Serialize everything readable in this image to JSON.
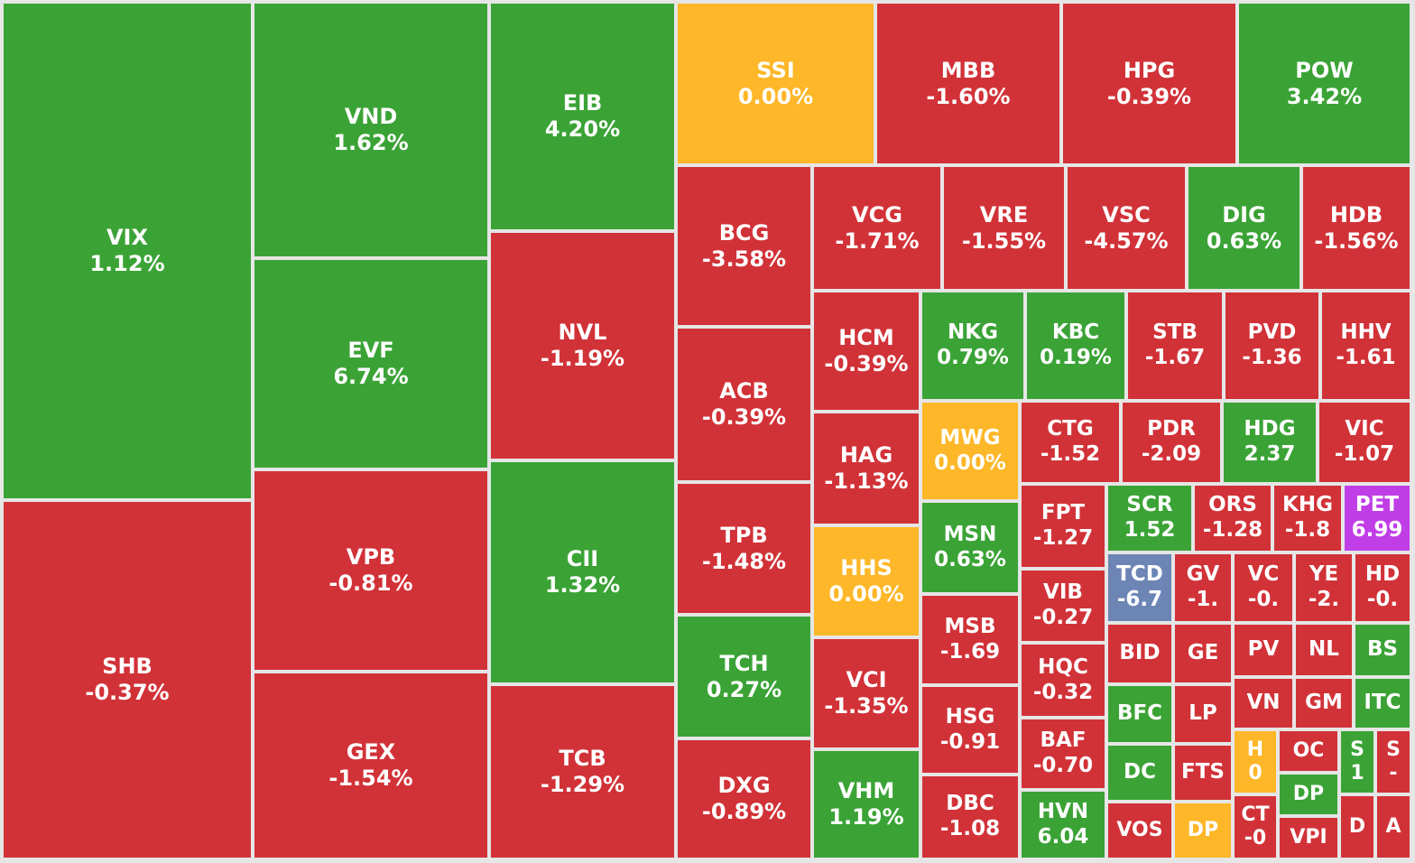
{
  "chart_data": {
    "type": "treemap",
    "colors": {
      "up": "#3ba336",
      "down": "#d13238",
      "flat": "#fdb728",
      "ceiling": "#c03ee6",
      "floor": "#6c85b5"
    },
    "items": [
      {
        "code": "VIX",
        "change": "1.12%",
        "status": "up"
      },
      {
        "code": "SHB",
        "change": "-0.37%",
        "status": "down"
      },
      {
        "code": "VND",
        "change": "1.62%",
        "status": "up"
      },
      {
        "code": "EVF",
        "change": "6.74%",
        "status": "up"
      },
      {
        "code": "VPB",
        "change": "-0.81%",
        "status": "down"
      },
      {
        "code": "GEX",
        "change": "-1.54%",
        "status": "down"
      },
      {
        "code": "EIB",
        "change": "4.20%",
        "status": "up"
      },
      {
        "code": "NVL",
        "change": "-1.19%",
        "status": "down"
      },
      {
        "code": "CII",
        "change": "1.32%",
        "status": "up"
      },
      {
        "code": "TCB",
        "change": "-1.29%",
        "status": "down"
      },
      {
        "code": "SSI",
        "change": "0.00%",
        "status": "flat"
      },
      {
        "code": "MBB",
        "change": "-1.60%",
        "status": "down"
      },
      {
        "code": "HPG",
        "change": "-0.39%",
        "status": "down"
      },
      {
        "code": "POW",
        "change": "3.42%",
        "status": "up"
      },
      {
        "code": "BCG",
        "change": "-3.58%",
        "status": "down"
      },
      {
        "code": "ACB",
        "change": "-0.39%",
        "status": "down"
      },
      {
        "code": "TPB",
        "change": "-1.48%",
        "status": "down"
      },
      {
        "code": "TCH",
        "change": "0.27%",
        "status": "up"
      },
      {
        "code": "DXG",
        "change": "-0.89%",
        "status": "down"
      },
      {
        "code": "VCG",
        "change": "-1.71%",
        "status": "down"
      },
      {
        "code": "VRE",
        "change": "-1.55%",
        "status": "down"
      },
      {
        "code": "VSC",
        "change": "-4.57%",
        "status": "down"
      },
      {
        "code": "DIG",
        "change": "0.63%",
        "status": "up"
      },
      {
        "code": "HDB",
        "change": "-1.56%",
        "status": "down"
      },
      {
        "code": "HCM",
        "change": "-0.39%",
        "status": "down"
      },
      {
        "code": "HAG",
        "change": "-1.13%",
        "status": "down"
      },
      {
        "code": "HHS",
        "change": "0.00%",
        "status": "flat"
      },
      {
        "code": "VCI",
        "change": "-1.35%",
        "status": "down"
      },
      {
        "code": "VHM",
        "change": "1.19%",
        "status": "up"
      },
      {
        "code": "NKG",
        "change": "0.79%",
        "status": "up"
      },
      {
        "code": "KBC",
        "change": "0.19%",
        "status": "up"
      },
      {
        "code": "STB",
        "change": "-1.67",
        "status": "down"
      },
      {
        "code": "PVD",
        "change": "-1.36",
        "status": "down"
      },
      {
        "code": "HHV",
        "change": "-1.61",
        "status": "down"
      },
      {
        "code": "MWG",
        "change": "0.00%",
        "status": "flat"
      },
      {
        "code": "MSN",
        "change": "0.63%",
        "status": "up"
      },
      {
        "code": "MSB",
        "change": "-1.69",
        "status": "down"
      },
      {
        "code": "HSG",
        "change": "-0.91",
        "status": "down"
      },
      {
        "code": "DBC",
        "change": "-1.08",
        "status": "down"
      },
      {
        "code": "CTG",
        "change": "-1.52",
        "status": "down"
      },
      {
        "code": "PDR",
        "change": "-2.09",
        "status": "down"
      },
      {
        "code": "HDG",
        "change": "2.37",
        "status": "up"
      },
      {
        "code": "VIC",
        "change": "-1.07",
        "status": "down"
      },
      {
        "code": "FPT",
        "change": "-1.27",
        "status": "down"
      },
      {
        "code": "VIB",
        "change": "-0.27",
        "status": "down"
      },
      {
        "code": "HQC",
        "change": "-0.32",
        "status": "down"
      },
      {
        "code": "BAF",
        "change": "-0.70",
        "status": "down"
      },
      {
        "code": "HVN",
        "change": "6.04",
        "status": "up"
      },
      {
        "code": "SCR",
        "change": "1.52",
        "status": "up"
      },
      {
        "code": "ORS",
        "change": "-1.28",
        "status": "down"
      },
      {
        "code": "KHG",
        "change": "-1.8",
        "status": "down"
      },
      {
        "code": "PET",
        "change": "6.99",
        "status": "ceiling"
      },
      {
        "code": "TCD",
        "change": "-6.7",
        "status": "floor"
      },
      {
        "code": "GV",
        "change": "-1.",
        "status": "down"
      },
      {
        "code": "VC",
        "change": "-0.",
        "status": "down"
      },
      {
        "code": "YE",
        "change": "-2.",
        "status": "down"
      },
      {
        "code": "HD",
        "change": "-0.",
        "status": "down"
      },
      {
        "code": "BID",
        "change": "",
        "status": "down"
      },
      {
        "code": "GE",
        "change": "",
        "status": "down"
      },
      {
        "code": "PV",
        "change": "",
        "status": "down"
      },
      {
        "code": "NL",
        "change": "",
        "status": "down"
      },
      {
        "code": "BS",
        "change": "",
        "status": "up"
      },
      {
        "code": "BFC",
        "change": "",
        "status": "up"
      },
      {
        "code": "LP",
        "change": "",
        "status": "down"
      },
      {
        "code": "VN",
        "change": "",
        "status": "down"
      },
      {
        "code": "GM",
        "change": "",
        "status": "down"
      },
      {
        "code": "ITC",
        "change": "",
        "status": "up"
      },
      {
        "code": "DC",
        "change": "",
        "status": "up"
      },
      {
        "code": "FTS",
        "change": "",
        "status": "down"
      },
      {
        "code": "H",
        "change": "0",
        "status": "flat"
      },
      {
        "code": "OC",
        "change": "",
        "status": "down"
      },
      {
        "code": "S",
        "change": "1",
        "status": "up"
      },
      {
        "code": "S",
        "change": "-",
        "status": "down"
      },
      {
        "code": "DP",
        "change": "",
        "status": "up"
      },
      {
        "code": "VOS",
        "change": "",
        "status": "down"
      },
      {
        "code": "DP",
        "change": "",
        "status": "flat"
      },
      {
        "code": "CT",
        "change": "-0",
        "status": "down"
      },
      {
        "code": "VPI",
        "change": "",
        "status": "down"
      },
      {
        "code": "D",
        "change": "",
        "status": "down"
      },
      {
        "code": "A",
        "change": "",
        "status": "down"
      }
    ]
  }
}
